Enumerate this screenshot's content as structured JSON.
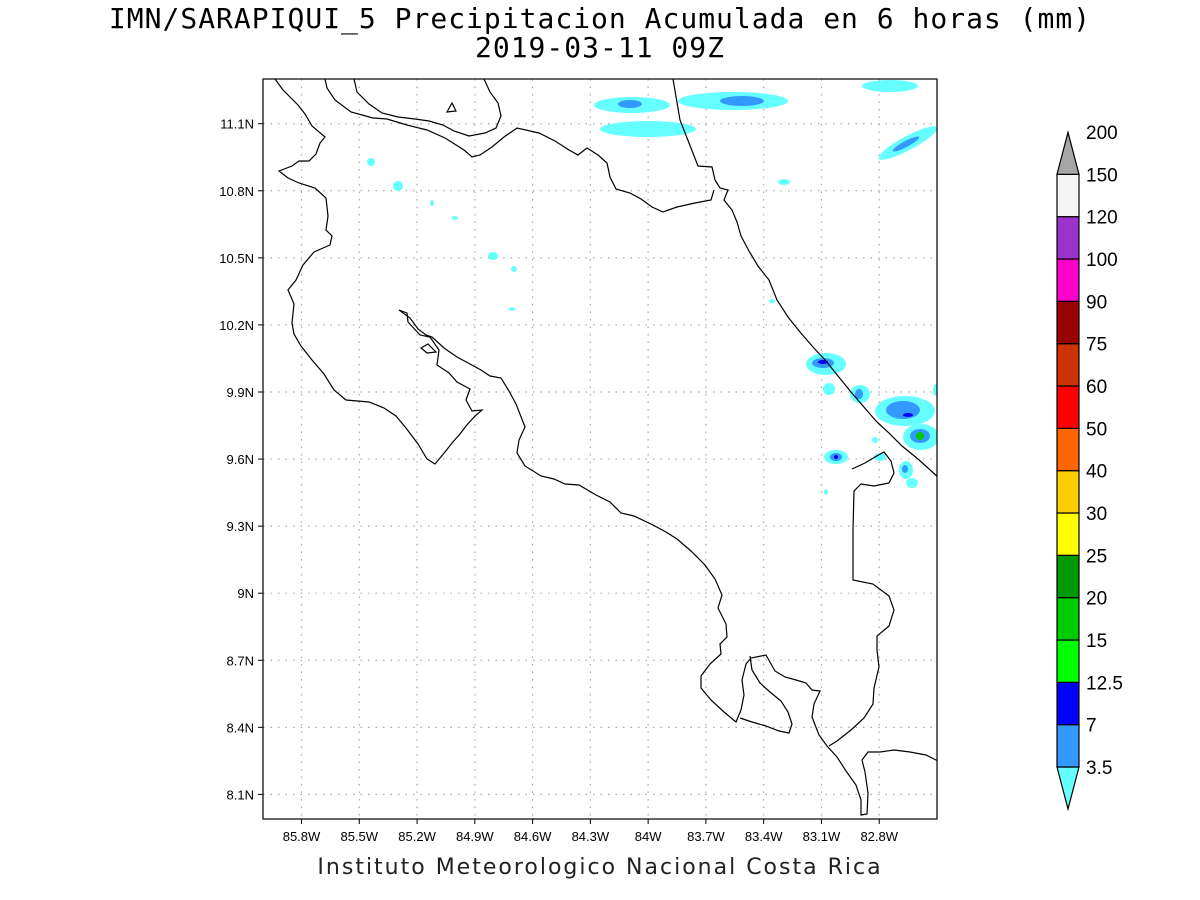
{
  "title": "IMN/SARAPIQUI_5 Precipitacion Acumulada en 6 horas (mm)",
  "subtitle": "2019-03-11 09Z",
  "footer": "Instituto Meteorologico Nacional Costa Rica",
  "map": {
    "lon_range": [
      -86.0,
      -82.5
    ],
    "lat_range": [
      7.99,
      11.3
    ],
    "grid": true,
    "x_tick_labels": [
      "85.8W",
      "85.5W",
      "85.2W",
      "84.9W",
      "84.6W",
      "84.3W",
      "84W",
      "83.7W",
      "83.4W",
      "83.1W",
      "82.8W"
    ],
    "x_tick_values": [
      -85.8,
      -85.5,
      -85.2,
      -84.9,
      -84.6,
      -84.3,
      -84.0,
      -83.7,
      -83.4,
      -83.1,
      -82.8
    ],
    "y_tick_labels": [
      "11.1N",
      "10.8N",
      "10.5N",
      "10.2N",
      "9.9N",
      "9.6N",
      "9.3N",
      "9N",
      "8.7N",
      "8.4N",
      "8.1N"
    ],
    "y_tick_values": [
      11.1,
      10.8,
      10.5,
      10.2,
      9.9,
      9.6,
      9.3,
      9.0,
      8.7,
      8.4,
      8.1
    ]
  },
  "colorbar": {
    "labels": [
      "3.5",
      "7",
      "12.5",
      "15",
      "20",
      "25",
      "30",
      "40",
      "50",
      "60",
      "75",
      "90",
      "100",
      "120",
      "150",
      "200"
    ],
    "colors": [
      "#66ffff",
      "#3399ff",
      "#0000ff",
      "#00ff00",
      "#00cc00",
      "#009900",
      "#ffff00",
      "#ffcc00",
      "#ff6600",
      "#ff0000",
      "#cc3300",
      "#990000",
      "#ff00cc",
      "#9933cc",
      "#f5f5f5",
      "#a6a6a6"
    ]
  }
}
